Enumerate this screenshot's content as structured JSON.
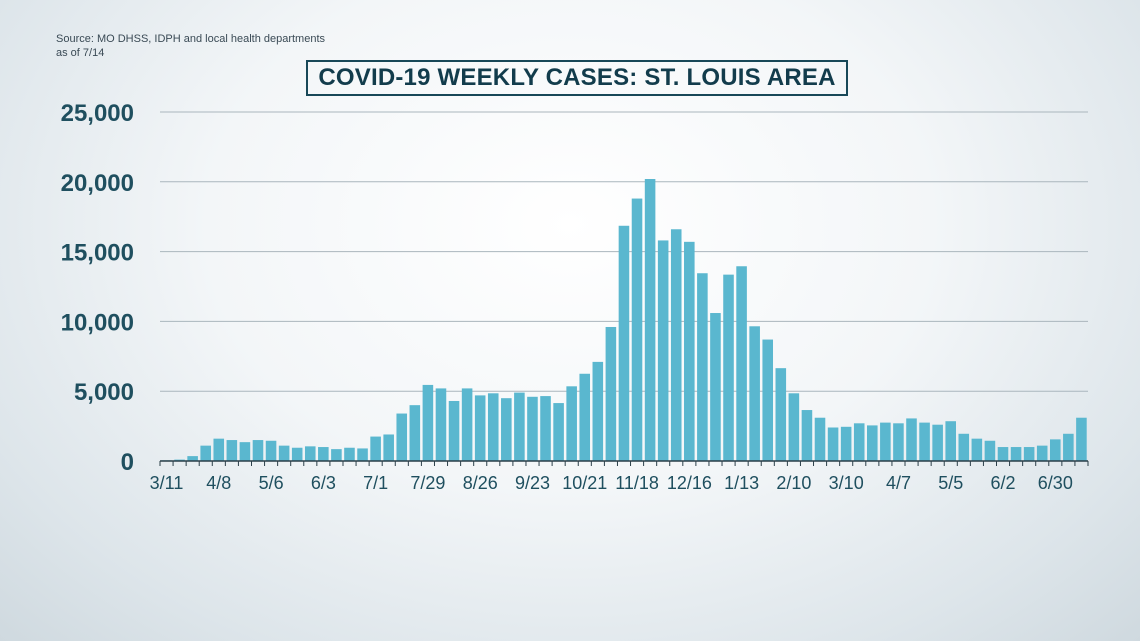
{
  "source": {
    "line1": "Source: MO DHSS, IDPH and local health departments",
    "line2": "as of 7/14"
  },
  "colors": {
    "bar": "#5ab7cf",
    "grid": "#aab6bd",
    "axis": "#2b3f49",
    "text": "#1f4f5f"
  },
  "chart_data": {
    "type": "bar",
    "title": "COVID-19 WEEKLY CASES:  ST. LOUIS AREA",
    "xlabel": "",
    "ylabel": "",
    "ylim": [
      0,
      25000
    ],
    "yticks": [
      0,
      5000,
      10000,
      15000,
      20000,
      25000
    ],
    "ytick_labels": [
      "0",
      "5,000",
      "10,000",
      "15,000",
      "20,000",
      "25,000"
    ],
    "xtick_labels": [
      "3/11",
      "4/8",
      "5/6",
      "6/3",
      "7/1",
      "7/29",
      "8/26",
      "9/23",
      "10/21",
      "11/18",
      "12/16",
      "1/13",
      "2/10",
      "3/10",
      "4/7",
      "5/5",
      "6/2",
      "6/30"
    ],
    "xtick_every": 4,
    "grid": true,
    "values": [
      50,
      100,
      350,
      1100,
      1600,
      1500,
      1350,
      1500,
      1450,
      1100,
      950,
      1050,
      1000,
      850,
      950,
      900,
      1750,
      1900,
      3400,
      4000,
      5450,
      5200,
      4300,
      5200,
      4700,
      4850,
      4500,
      4900,
      4600,
      4650,
      4150,
      5350,
      6250,
      7100,
      9600,
      16850,
      18800,
      20200,
      15800,
      16600,
      15700,
      13450,
      10600,
      13350,
      13950,
      9650,
      8700,
      6650,
      4850,
      3650,
      3100,
      2400,
      2450,
      2700,
      2550,
      2750,
      2700,
      3050,
      2750,
      2600,
      2850,
      1950,
      1600,
      1450,
      1000,
      1000,
      1000,
      1100,
      1550,
      1950,
      3100
    ]
  }
}
